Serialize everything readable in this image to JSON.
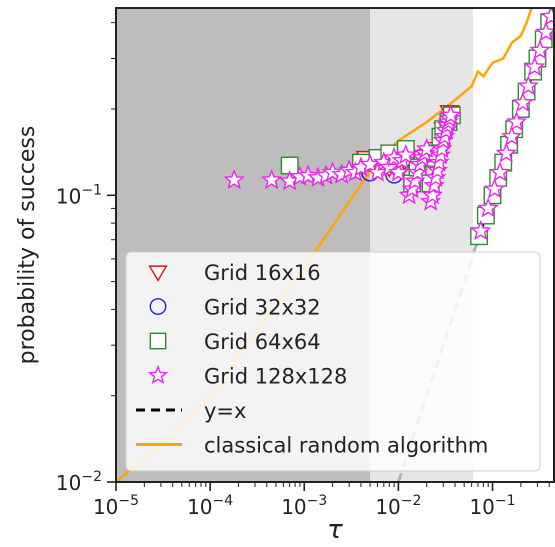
{
  "chart_data": {
    "type": "scatter",
    "title": "",
    "xlabel": "τ",
    "ylabel": "probability of success",
    "xscale": "log",
    "yscale": "log",
    "xlim": [
      1e-05,
      0.45
    ],
    "ylim": [
      0.01,
      0.45
    ],
    "x_ticks": [
      {
        "base": "10",
        "exp": "−5",
        "value": 1e-05
      },
      {
        "base": "10",
        "exp": "−4",
        "value": 0.0001
      },
      {
        "base": "10",
        "exp": "−3",
        "value": 0.001
      },
      {
        "base": "10",
        "exp": "−2",
        "value": 0.01
      },
      {
        "base": "10",
        "exp": "−1",
        "value": 0.1
      }
    ],
    "y_ticks": [
      {
        "base": "10",
        "exp": "−2",
        "value": 0.01
      },
      {
        "base": "10",
        "exp": "−1",
        "value": 0.1
      }
    ],
    "shaded_regions": [
      {
        "x_from": 1e-05,
        "x_to": 0.005,
        "color": "#bdbdbd"
      },
      {
        "x_from": 0.005,
        "x_to": 0.062,
        "color": "#e6e6e6"
      }
    ],
    "legend_position": "lower-right",
    "series": [
      {
        "name": "Grid 16x16",
        "kind": "marker",
        "marker": "triangle-down",
        "color": "#e01010",
        "points": [
          [
            0.0045,
            0.135
          ],
          [
            0.008,
            0.125
          ],
          [
            0.012,
            0.13
          ],
          [
            0.018,
            0.135
          ],
          [
            0.025,
            0.145
          ],
          [
            0.03,
            0.17
          ],
          [
            0.035,
            0.195
          ]
        ]
      },
      {
        "name": "Grid 32x32",
        "kind": "marker",
        "marker": "circle",
        "color": "#1f1fd0",
        "points": [
          [
            0.005,
            0.12
          ],
          [
            0.009,
            0.118
          ],
          [
            0.014,
            0.12
          ],
          [
            0.02,
            0.125
          ],
          [
            0.028,
            0.15
          ]
        ]
      },
      {
        "name": "Grid 64x64",
        "kind": "marker",
        "marker": "square",
        "color": "#2e8b2e",
        "points": [
          [
            0.0007,
            0.127
          ],
          [
            0.004,
            0.13
          ],
          [
            0.006,
            0.135
          ],
          [
            0.008,
            0.14
          ],
          [
            0.012,
            0.145
          ],
          [
            0.014,
            0.11
          ],
          [
            0.016,
            0.125
          ],
          [
            0.02,
            0.135
          ],
          [
            0.022,
            0.11
          ],
          [
            0.025,
            0.14
          ],
          [
            0.028,
            0.16
          ],
          [
            0.03,
            0.17
          ],
          [
            0.034,
            0.18
          ],
          [
            0.037,
            0.19
          ],
          [
            0.072,
            0.072
          ],
          [
            0.085,
            0.085
          ],
          [
            0.1,
            0.1
          ],
          [
            0.115,
            0.115
          ],
          [
            0.13,
            0.13
          ],
          [
            0.15,
            0.15
          ],
          [
            0.17,
            0.17
          ],
          [
            0.2,
            0.2
          ],
          [
            0.23,
            0.23
          ],
          [
            0.27,
            0.27
          ],
          [
            0.3,
            0.3
          ],
          [
            0.35,
            0.35
          ],
          [
            0.4,
            0.4
          ]
        ]
      },
      {
        "name": "Grid 128x128",
        "kind": "marker",
        "marker": "star",
        "color": "#ee22ee",
        "points": [
          [
            0.00018,
            0.113
          ],
          [
            0.00045,
            0.113
          ],
          [
            0.0007,
            0.112
          ],
          [
            0.0009,
            0.116
          ],
          [
            0.0011,
            0.117
          ],
          [
            0.0014,
            0.115
          ],
          [
            0.0017,
            0.117
          ],
          [
            0.002,
            0.12
          ],
          [
            0.0025,
            0.118
          ],
          [
            0.003,
            0.122
          ],
          [
            0.0035,
            0.12
          ],
          [
            0.004,
            0.125
          ],
          [
            0.005,
            0.128
          ],
          [
            0.006,
            0.12
          ],
          [
            0.007,
            0.13
          ],
          [
            0.008,
            0.125
          ],
          [
            0.009,
            0.135
          ],
          [
            0.01,
            0.12
          ],
          [
            0.011,
            0.132
          ],
          [
            0.012,
            0.138
          ],
          [
            0.013,
            0.1
          ],
          [
            0.014,
            0.105
          ],
          [
            0.015,
            0.112
          ],
          [
            0.016,
            0.12
          ],
          [
            0.017,
            0.128
          ],
          [
            0.018,
            0.135
          ],
          [
            0.019,
            0.14
          ],
          [
            0.02,
            0.145
          ],
          [
            0.022,
            0.095
          ],
          [
            0.023,
            0.1
          ],
          [
            0.024,
            0.108
          ],
          [
            0.025,
            0.115
          ],
          [
            0.026,
            0.122
          ],
          [
            0.027,
            0.13
          ],
          [
            0.028,
            0.138
          ],
          [
            0.029,
            0.145
          ],
          [
            0.03,
            0.155
          ],
          [
            0.031,
            0.16
          ],
          [
            0.032,
            0.168
          ],
          [
            0.033,
            0.175
          ],
          [
            0.034,
            0.18
          ],
          [
            0.035,
            0.185
          ],
          [
            0.036,
            0.19
          ],
          [
            0.075,
            0.075
          ],
          [
            0.09,
            0.09
          ],
          [
            0.105,
            0.105
          ],
          [
            0.12,
            0.12
          ],
          [
            0.14,
            0.14
          ],
          [
            0.16,
            0.16
          ],
          [
            0.18,
            0.18
          ],
          [
            0.21,
            0.21
          ],
          [
            0.24,
            0.24
          ],
          [
            0.28,
            0.28
          ],
          [
            0.32,
            0.32
          ],
          [
            0.37,
            0.37
          ],
          [
            0.42,
            0.42
          ]
        ]
      },
      {
        "name": "y=x",
        "kind": "line",
        "style": "dashed",
        "color": "#000000",
        "points": [
          [
            0.067,
            0.067
          ],
          [
            0.45,
            0.45
          ]
        ]
      },
      {
        "name": "classical random algorithm",
        "kind": "line",
        "style": "solid",
        "color": "#ffa500",
        "points": [
          [
            1e-05,
            0.01
          ],
          [
            3e-05,
            0.0135
          ],
          [
            0.0001,
            0.02
          ],
          [
            0.0003,
            0.033
          ],
          [
            0.001,
            0.056
          ],
          [
            0.003,
            0.095
          ],
          [
            0.006,
            0.132
          ],
          [
            0.01,
            0.155
          ],
          [
            0.02,
            0.18
          ],
          [
            0.04,
            0.215
          ],
          [
            0.06,
            0.24
          ],
          [
            0.07,
            0.27
          ],
          [
            0.08,
            0.26
          ],
          [
            0.1,
            0.29
          ],
          [
            0.13,
            0.3
          ],
          [
            0.16,
            0.34
          ],
          [
            0.2,
            0.36
          ],
          [
            0.23,
            0.4
          ],
          [
            0.26,
            0.45
          ]
        ]
      },
      {
        "name": "",
        "kind": "line",
        "style": "dashed",
        "color": "#b0b0b0",
        "points": [
          [
            0.01,
            0.01
          ],
          [
            0.067,
            0.067
          ]
        ]
      }
    ]
  }
}
